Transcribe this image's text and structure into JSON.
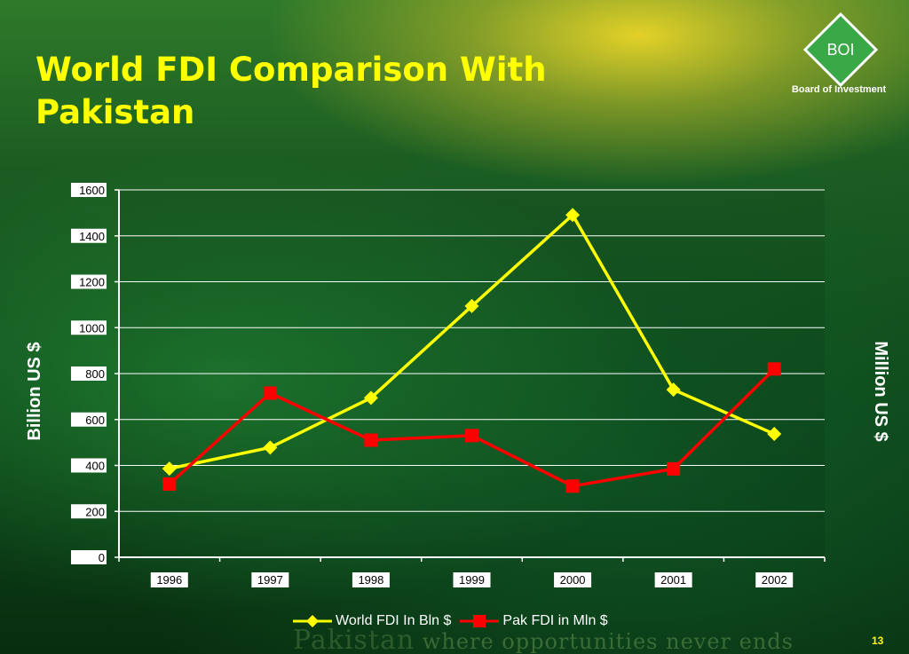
{
  "slide": {
    "title": "World FDI Comparison With Pakistan",
    "logo_text": "BOI",
    "logo_subtitle": "Board of Investment",
    "tagline_word": "Pakistan",
    "tagline_rest": "where opportunities never ends",
    "page_number": "13",
    "colors": {
      "title": "#ffff00",
      "logo": "#39a846",
      "background": "#0d4418"
    }
  },
  "chart_data": {
    "type": "line",
    "categories": [
      "1996",
      "1997",
      "1998",
      "1999",
      "2000",
      "2001",
      "2002"
    ],
    "series": [
      {
        "name": "World FDI In Bln $",
        "values": [
          386,
          478,
          694,
          1094,
          1491,
          730,
          537
        ],
        "color": "#ffff00",
        "marker": "diamond"
      },
      {
        "name": "Pak FDI in Mln $",
        "values": [
          319,
          715,
          510,
          530,
          310,
          385,
          820
        ],
        "color": "#ff0000",
        "marker": "square"
      }
    ],
    "ylim": [
      0,
      1600
    ],
    "yticks": [
      "0",
      "200",
      "400",
      "600",
      "800",
      "1000",
      "1200",
      "1400",
      "1600"
    ],
    "ylabel": "Billion US $",
    "ylabel_right": "Million US $",
    "xlabel": "",
    "grid": true,
    "legend": "bottom-center"
  }
}
